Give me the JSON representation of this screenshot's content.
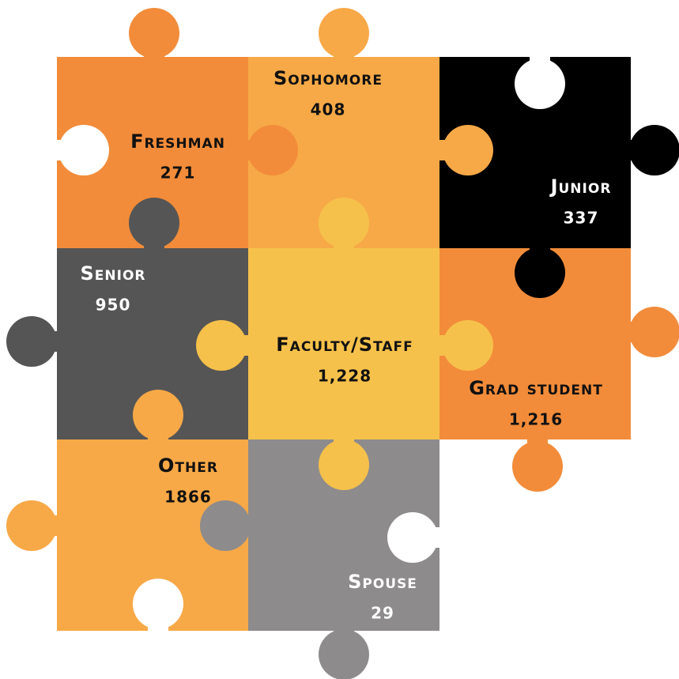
{
  "pieces": [
    {
      "label": "Freshman",
      "value": "271"
    },
    {
      "label": "Sophomore",
      "value": "408"
    },
    {
      "label": "Junior",
      "value": "337"
    },
    {
      "label": "Senior",
      "value": "950"
    },
    {
      "label": "Faculty/Staff",
      "value": "1,228"
    },
    {
      "label": "Grad student",
      "value": "1,216"
    },
    {
      "label": "Other",
      "value": "1866"
    },
    {
      "label": "Spouse",
      "value": "29"
    }
  ]
}
